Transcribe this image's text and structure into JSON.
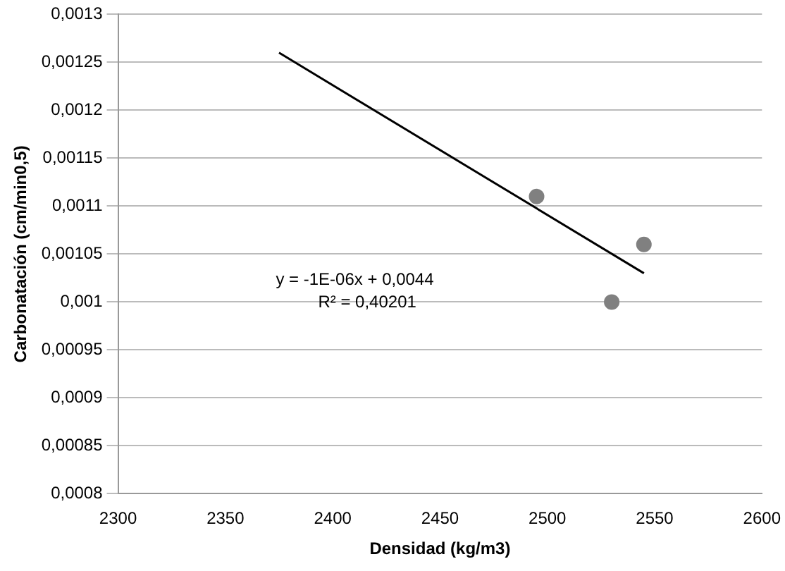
{
  "chart_data": {
    "type": "scatter",
    "xlabel": "Densidad (kg/m3)",
    "ylabel": "Carbonatación (cm/min0,5)",
    "series": [
      {
        "color": "#808080",
        "x": [
          2495,
          2530,
          2545
        ],
        "values": [
          0.00111,
          0.001,
          0.00106
        ]
      },
      {
        "type": "line",
        "color": "#000000",
        "x": [
          2375,
          2545
        ],
        "values": [
          0.00126,
          0.00103
        ],
        "marker": "none"
      }
    ],
    "xlim": [
      2300,
      2600
    ],
    "xticks": [
      2300,
      2350,
      2400,
      2450,
      2500,
      2550,
      2600
    ],
    "ylim": [
      0.0008,
      0.0013
    ],
    "yticks": [
      {
        "value": 0.0008,
        "label": "0,0008"
      },
      {
        "value": 0.00085,
        "label": "0,00085"
      },
      {
        "value": 0.0009,
        "label": "0,0009"
      },
      {
        "value": 0.00095,
        "label": "0,00095"
      },
      {
        "value": 0.001,
        "label": "0,001"
      },
      {
        "value": 0.00105,
        "label": "0,00105"
      },
      {
        "value": 0.0011,
        "label": "0,0011"
      },
      {
        "value": 0.00115,
        "label": "0,00115"
      },
      {
        "value": 0.0012,
        "label": "0,0012"
      },
      {
        "value": 0.00125,
        "label": "0,00125"
      },
      {
        "value": 0.0013,
        "label": "0,0013"
      }
    ],
    "annotations": [
      "y = -1E-06x + 0,0044",
      "R² = 0,40201"
    ],
    "grid": "y",
    "marker": "circle",
    "legend": false
  }
}
